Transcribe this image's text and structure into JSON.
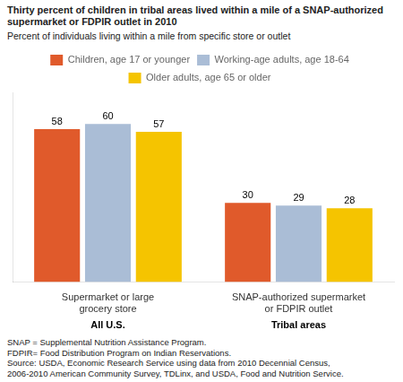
{
  "chart_data": {
    "type": "bar",
    "title": [
      "Thirty percent of children in tribal areas lived within a mile of a SNAP-authorized",
      "supermarket or FDPIR outlet in 2010"
    ],
    "subtitle": "Percent of individuals living within a mile from specific store or outlet",
    "categories": [
      "Supermarket or large\ngrocery store",
      "SNAP-authorized supermarket\nor FDPIR outlet"
    ],
    "annotations": [
      {
        "text": "All U.S.",
        "category": "Supermarket or large\ngrocery store"
      },
      {
        "text": "Tribal areas",
        "category": "SNAP-authorized supermarket\nor FDPIR outlet"
      }
    ],
    "series": [
      {
        "name": "Children, age 17 or younger",
        "color": "#E05A2B",
        "values": [
          58,
          30
        ]
      },
      {
        "name": "Working-age adults, age 18-64",
        "color": "#AABDD6",
        "values": [
          60,
          29
        ]
      },
      {
        "name": "Older adults, age 65 or older",
        "color": "#F5C400",
        "values": [
          57,
          28
        ]
      }
    ],
    "ylim": [
      0,
      72
    ],
    "grid": false,
    "legend": "top",
    "data_labels": true,
    "tick_labels": "x",
    "footnotes": [
      "SNAP = Supplemental Nutrition Assistance Program.",
      "FDPIR= Food Distribution Program on Indian Reservations.",
      "Source: USDA, Economic Research Service using data from 2010 Decennial Census,",
      "2006-2010 American Community Survey, TDLinx, and USDA, Food and Nutrition Service."
    ]
  }
}
